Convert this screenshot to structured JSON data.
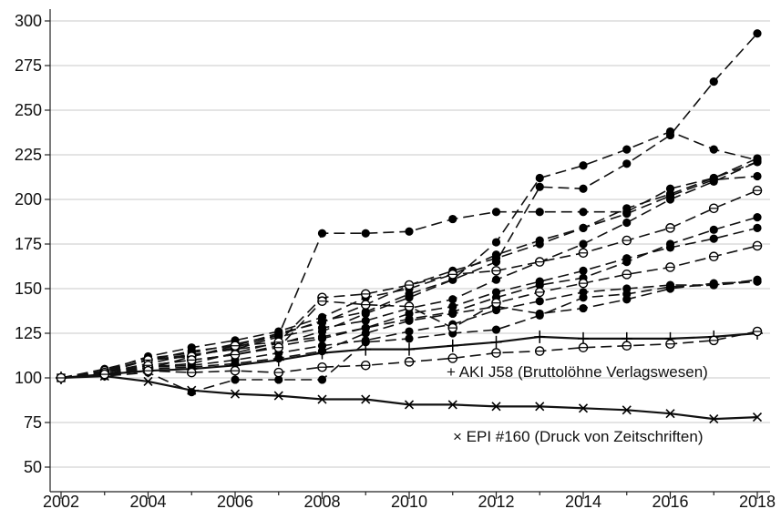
{
  "chart_data": {
    "type": "line",
    "title": "",
    "xlabel": "",
    "ylabel": "",
    "xlim": [
      2002,
      2018
    ],
    "ylim": [
      50,
      300
    ],
    "x_ticks": [
      "2002",
      "2004",
      "2006",
      "2008",
      "2010",
      "2012",
      "2014",
      "2016",
      "2018"
    ],
    "y_ticks": [
      "50",
      "75",
      "100",
      "125",
      "150",
      "175",
      "200",
      "225",
      "250",
      "275",
      "300"
    ],
    "grid": "horizontal",
    "x": [
      2002,
      2003,
      2004,
      2005,
      2006,
      2007,
      2008,
      2009,
      2010,
      2011,
      2012,
      2013,
      2014,
      2015,
      2016,
      2017,
      2018
    ],
    "annotations": [
      {
        "text": "+ AKI J58 (Bruttolöhne Verlagswesen)"
      },
      {
        "text": "× EPI #160 (Druck von Zeitschriften)"
      }
    ],
    "series": [
      {
        "name": "AKI J58 (Bruttolöhne Verlagswesen)",
        "style": "solid",
        "marker": "plus",
        "values": [
          100,
          102,
          104,
          105,
          107,
          110,
          114,
          116,
          116,
          118,
          120,
          123,
          122,
          122,
          122,
          123,
          125
        ]
      },
      {
        "name": "EPI #160 (Druck von Zeitschriften)",
        "style": "solid",
        "marker": "x",
        "values": [
          100,
          101,
          98,
          93,
          91,
          90,
          88,
          88,
          85,
          85,
          84,
          84,
          83,
          82,
          80,
          77,
          78
        ]
      },
      {
        "style": "dashed",
        "marker": "filled",
        "values": [
          100,
          105,
          111,
          114,
          119,
          124,
          181,
          181,
          182,
          189,
          193,
          193,
          193,
          193,
          206,
          212,
          221
        ]
      },
      {
        "style": "dashed",
        "marker": "filled",
        "values": [
          100,
          104,
          110,
          113,
          116,
          119,
          126,
          136,
          145,
          155,
          176,
          212,
          219,
          228,
          238,
          228,
          222
        ]
      },
      {
        "style": "dashed",
        "marker": "filled",
        "values": [
          100,
          102,
          105,
          112,
          117,
          124,
          132,
          137,
          147,
          155,
          165,
          207,
          206,
          220,
          236,
          266,
          293
        ]
      },
      {
        "style": "dashed",
        "marker": "filled",
        "values": [
          100,
          103,
          110,
          115,
          118,
          125,
          131,
          141,
          152,
          160,
          167,
          175,
          184,
          195,
          203,
          212,
          223
        ]
      },
      {
        "style": "dashed",
        "marker": "filled",
        "values": [
          100,
          104,
          112,
          117,
          121,
          126,
          134,
          145,
          150,
          158,
          169,
          177,
          184,
          192,
          202,
          211,
          213
        ]
      },
      {
        "style": "dashed",
        "marker": "filled",
        "values": [
          100,
          103,
          108,
          113,
          116,
          123,
          128,
          132,
          139,
          144,
          155,
          165,
          175,
          187,
          200,
          210,
          221
        ]
      },
      {
        "style": "dashed",
        "marker": "filled",
        "values": [
          100,
          102,
          107,
          110,
          113,
          118,
          122,
          128,
          136,
          140,
          148,
          154,
          160,
          167,
          173,
          178,
          184
        ]
      },
      {
        "style": "dashed",
        "marker": "filled",
        "values": [
          100,
          102,
          106,
          108,
          114,
          120,
          123,
          128,
          133,
          137,
          145,
          152,
          156,
          165,
          175,
          183,
          190
        ]
      },
      {
        "style": "dashed",
        "marker": "filled",
        "values": [
          100,
          101,
          106,
          107,
          110,
          114,
          118,
          121,
          126,
          130,
          138,
          143,
          148,
          150,
          152,
          152,
          155
        ]
      },
      {
        "style": "dashed",
        "marker": "filled",
        "values": [
          100,
          101,
          105,
          106,
          108,
          111,
          115,
          125,
          132,
          136,
          140,
          136,
          139,
          144,
          150,
          153,
          154
        ]
      },
      {
        "style": "dashed",
        "marker": "filled",
        "values": [
          100,
          101,
          103,
          92,
          99,
          99,
          99,
          120,
          122,
          125,
          127,
          135,
          145,
          147,
          151,
          152,
          154
        ]
      },
      {
        "style": "dashed",
        "marker": "open",
        "values": [
          100,
          104,
          110,
          112,
          118,
          120,
          145,
          147,
          152,
          158,
          160,
          165,
          170,
          177,
          184,
          195,
          205
        ]
      },
      {
        "style": "dashed",
        "marker": "open",
        "values": [
          100,
          103,
          107,
          110,
          113,
          117,
          143,
          141,
          140,
          128,
          142,
          148,
          153,
          158,
          162,
          168,
          174
        ]
      },
      {
        "style": "dashed",
        "marker": "open",
        "values": [
          100,
          102,
          104,
          103,
          104,
          103,
          106,
          107,
          109,
          111,
          114,
          115,
          117,
          118,
          119,
          121,
          126
        ]
      }
    ]
  }
}
